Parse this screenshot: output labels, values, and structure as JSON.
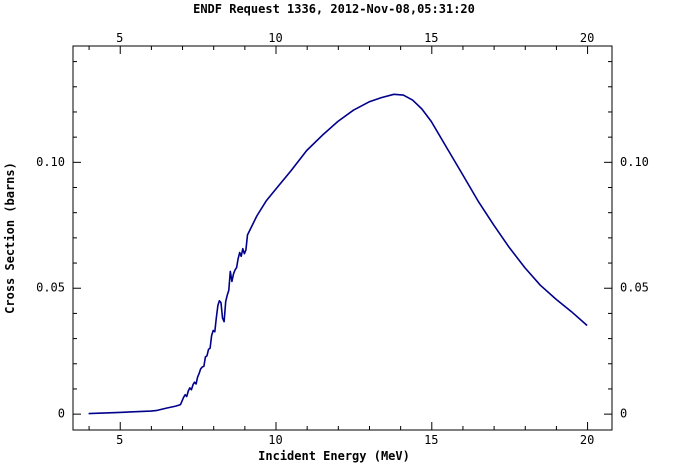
{
  "chart_data": {
    "type": "line",
    "title": "ENDF Request 1336, 2012-Nov-08,05:31:20",
    "xlabel": "Incident Energy (MeV)",
    "ylabel": "Cross Section (barns)",
    "xlim": [
      3.5,
      20.8
    ],
    "ylim": [
      -0.0065,
      0.146
    ],
    "x_ticks": [
      5,
      10,
      15,
      20
    ],
    "x_tick_labels": [
      "5",
      "10",
      "15",
      "20"
    ],
    "y_ticks": [
      0,
      0.05,
      0.1
    ],
    "y_tick_labels": [
      "0",
      "0.05",
      "0.10"
    ],
    "grid": false,
    "line_color": "#00008b",
    "series": [
      {
        "x": [
          4.0,
          5.0,
          6.0,
          6.2,
          6.5,
          6.8,
          6.95,
          7.05,
          7.1,
          7.15,
          7.2,
          7.25,
          7.3,
          7.35,
          7.4,
          7.45,
          7.5,
          7.55,
          7.6,
          7.65,
          7.7,
          7.75,
          7.8,
          7.85,
          7.9,
          7.95,
          8.0,
          8.05,
          8.1,
          8.15,
          8.2,
          8.25,
          8.3,
          8.35,
          8.4,
          8.45,
          8.5,
          8.55,
          8.6,
          8.65,
          8.7,
          8.75,
          8.8,
          8.85,
          8.9,
          8.95,
          9.0,
          9.05,
          9.1,
          9.2,
          9.4,
          9.7,
          10.0,
          10.5,
          11.0,
          11.5,
          12.0,
          12.5,
          13.0,
          13.4,
          13.8,
          14.1,
          14.4,
          14.7,
          15.0,
          15.5,
          16.0,
          16.5,
          17.0,
          17.5,
          18.0,
          18.5,
          19.0,
          19.5,
          20.0
        ],
        "y": [
          0.0,
          0.0005,
          0.001,
          0.0013,
          0.0022,
          0.003,
          0.0036,
          0.0065,
          0.0075,
          0.0068,
          0.009,
          0.0102,
          0.0095,
          0.0115,
          0.0125,
          0.0118,
          0.0145,
          0.016,
          0.0178,
          0.0185,
          0.0188,
          0.0225,
          0.023,
          0.0255,
          0.026,
          0.031,
          0.033,
          0.0325,
          0.038,
          0.043,
          0.0448,
          0.044,
          0.038,
          0.0365,
          0.0445,
          0.047,
          0.049,
          0.0565,
          0.0525,
          0.0555,
          0.057,
          0.058,
          0.0615,
          0.064,
          0.0625,
          0.0655,
          0.0635,
          0.065,
          0.071,
          0.0735,
          0.0785,
          0.0845,
          0.089,
          0.0965,
          0.1045,
          0.1105,
          0.116,
          0.1205,
          0.1238,
          0.1255,
          0.1268,
          0.1265,
          0.1245,
          0.121,
          0.116,
          0.1055,
          0.095,
          0.0845,
          0.075,
          0.066,
          0.058,
          0.051,
          0.0455,
          0.0405,
          0.035
        ]
      }
    ]
  }
}
